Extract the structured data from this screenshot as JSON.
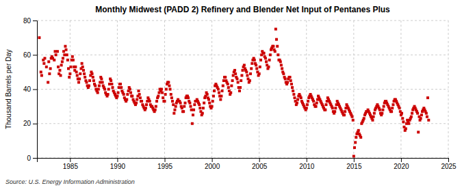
{
  "chart_data": {
    "type": "scatter",
    "title": "Monthly Midwest (PADD 2) Refinery and Blender Net Input of Pentanes Plus",
    "ylabel": "Thousand Barrels per Day",
    "annotations": [
      "Source: U.S. Energy Information Administration"
    ],
    "color": "#cc0000",
    "marker": "square",
    "grid": true,
    "xlim": [
      1981.5,
      2025
    ],
    "ylim": [
      0,
      80
    ],
    "xticks": [
      1985,
      1990,
      1995,
      2000,
      2005,
      2010,
      2015,
      2020,
      2025
    ],
    "yticks": [
      0,
      20,
      40,
      60,
      80
    ],
    "x": [
      1981.75,
      1981.92,
      1982.0,
      1982.17,
      1982.25,
      1982.33,
      1982.5,
      1982.67,
      1982.75,
      1982.83,
      1982.92,
      1983.0,
      1983.08,
      1983.17,
      1983.33,
      1983.42,
      1983.5,
      1983.67,
      1983.75,
      1983.83,
      1983.92,
      1984.0,
      1984.08,
      1984.17,
      1984.25,
      1984.33,
      1984.42,
      1984.5,
      1984.58,
      1984.67,
      1984.75,
      1984.83,
      1984.92,
      1985.0,
      1985.08,
      1985.17,
      1985.25,
      1985.33,
      1985.42,
      1985.5,
      1985.58,
      1985.67,
      1985.75,
      1985.83,
      1985.92,
      1986.0,
      1986.08,
      1986.17,
      1986.25,
      1986.33,
      1986.42,
      1986.5,
      1986.58,
      1986.67,
      1986.75,
      1986.83,
      1986.92,
      1987.0,
      1987.08,
      1987.17,
      1987.25,
      1987.33,
      1987.42,
      1987.5,
      1987.58,
      1987.67,
      1987.75,
      1987.83,
      1987.92,
      1988.0,
      1988.08,
      1988.17,
      1988.25,
      1988.33,
      1988.42,
      1988.5,
      1988.58,
      1988.67,
      1988.75,
      1988.83,
      1988.92,
      1989.0,
      1989.08,
      1989.17,
      1989.25,
      1989.33,
      1989.42,
      1989.5,
      1989.58,
      1989.67,
      1989.75,
      1989.83,
      1989.92,
      1990.0,
      1990.08,
      1990.17,
      1990.25,
      1990.33,
      1990.42,
      1990.5,
      1990.58,
      1990.67,
      1990.75,
      1990.83,
      1990.92,
      1991.0,
      1991.08,
      1991.17,
      1991.25,
      1991.33,
      1991.42,
      1991.5,
      1991.58,
      1991.67,
      1991.75,
      1991.83,
      1991.92,
      1992.0,
      1992.08,
      1992.17,
      1992.25,
      1992.33,
      1992.42,
      1992.5,
      1992.58,
      1992.67,
      1992.75,
      1992.83,
      1992.92,
      1993.0,
      1993.08,
      1993.17,
      1993.25,
      1993.33,
      1993.42,
      1993.5,
      1993.58,
      1993.67,
      1993.75,
      1993.83,
      1993.92,
      1994.0,
      1994.08,
      1994.17,
      1994.25,
      1994.33,
      1994.42,
      1994.5,
      1994.58,
      1994.67,
      1994.75,
      1994.83,
      1994.92,
      1995.0,
      1995.08,
      1995.17,
      1995.25,
      1995.33,
      1995.42,
      1995.5,
      1995.58,
      1995.67,
      1995.75,
      1995.83,
      1995.92,
      1996.0,
      1996.08,
      1996.17,
      1996.25,
      1996.33,
      1996.42,
      1996.5,
      1996.58,
      1996.67,
      1996.75,
      1996.83,
      1996.92,
      1997.0,
      1997.08,
      1997.17,
      1997.25,
      1997.33,
      1997.42,
      1997.5,
      1997.58,
      1997.67,
      1997.75,
      1997.83,
      1997.92,
      1998.0,
      1998.08,
      1998.17,
      1998.25,
      1998.33,
      1998.42,
      1998.5,
      1998.58,
      1998.67,
      1998.75,
      1998.83,
      1998.92,
      1999.0,
      1999.08,
      1999.17,
      1999.25,
      1999.33,
      1999.42,
      1999.5,
      1999.58,
      1999.67,
      1999.75,
      1999.83,
      1999.92,
      2000.0,
      2000.08,
      2000.17,
      2000.25,
      2000.33,
      2000.42,
      2000.5,
      2000.58,
      2000.67,
      2000.75,
      2000.83,
      2000.92,
      2001.0,
      2001.08,
      2001.17,
      2001.25,
      2001.33,
      2001.42,
      2001.5,
      2001.58,
      2001.67,
      2001.75,
      2001.83,
      2001.92,
      2002.0,
      2002.08,
      2002.17,
      2002.25,
      2002.33,
      2002.42,
      2002.5,
      2002.58,
      2002.67,
      2002.75,
      2002.83,
      2002.92,
      2003.0,
      2003.08,
      2003.17,
      2003.25,
      2003.33,
      2003.42,
      2003.5,
      2003.58,
      2003.67,
      2003.75,
      2003.83,
      2003.92,
      2004.0,
      2004.08,
      2004.17,
      2004.25,
      2004.33,
      2004.42,
      2004.5,
      2004.58,
      2004.67,
      2004.75,
      2004.83,
      2004.92,
      2005.0,
      2005.08,
      2005.17,
      2005.25,
      2005.33,
      2005.42,
      2005.5,
      2005.58,
      2005.67,
      2005.75,
      2005.83,
      2005.92,
      2006.0,
      2006.08,
      2006.17,
      2006.25,
      2006.33,
      2006.42,
      2006.5,
      2006.58,
      2006.67,
      2006.75,
      2006.83,
      2006.92,
      2007.0,
      2007.08,
      2007.17,
      2007.25,
      2007.33,
      2007.42,
      2007.5,
      2007.58,
      2007.67,
      2007.75,
      2007.83,
      2007.92,
      2008.0,
      2008.08,
      2008.17,
      2008.25,
      2008.33,
      2008.42,
      2008.5,
      2008.58,
      2008.67,
      2008.75,
      2008.83,
      2008.92,
      2009.0,
      2009.08,
      2009.17,
      2009.25,
      2009.33,
      2009.42,
      2009.5,
      2009.58,
      2009.67,
      2009.75,
      2009.83,
      2009.92,
      2010.0,
      2010.08,
      2010.17,
      2010.25,
      2010.33,
      2010.42,
      2010.5,
      2010.58,
      2010.67,
      2010.75,
      2010.83,
      2010.92,
      2011.0,
      2011.08,
      2011.17,
      2011.25,
      2011.33,
      2011.42,
      2011.5,
      2011.58,
      2011.67,
      2011.75,
      2011.83,
      2011.92,
      2012.0,
      2012.08,
      2012.17,
      2012.25,
      2012.33,
      2012.42,
      2012.5,
      2012.58,
      2012.67,
      2012.75,
      2012.83,
      2012.92,
      2013.0,
      2013.08,
      2013.17,
      2013.25,
      2013.33,
      2013.42,
      2013.5,
      2013.58,
      2013.67,
      2013.75,
      2013.83,
      2013.92,
      2014.0,
      2014.08,
      2014.17,
      2014.25,
      2014.33,
      2014.42,
      2014.5,
      2014.58,
      2014.67,
      2014.75,
      2014.83,
      2014.92,
      2015.0,
      2015.08,
      2015.17,
      2015.25,
      2015.33,
      2015.42,
      2015.5,
      2015.58,
      2015.67,
      2015.75,
      2015.83,
      2015.92,
      2016.0,
      2016.08,
      2016.17,
      2016.25,
      2016.33,
      2016.42,
      2016.5,
      2016.58,
      2016.67,
      2016.75,
      2016.83,
      2016.92,
      2017.0,
      2017.08,
      2017.17,
      2017.25,
      2017.33,
      2017.42,
      2017.5,
      2017.58,
      2017.67,
      2017.75,
      2017.83,
      2017.92,
      2018.0,
      2018.08,
      2018.17,
      2018.25,
      2018.33,
      2018.42,
      2018.5,
      2018.58,
      2018.67,
      2018.75,
      2018.83,
      2018.92,
      2019.0,
      2019.08,
      2019.17,
      2019.25,
      2019.33,
      2019.42,
      2019.5,
      2019.58,
      2019.67,
      2019.75,
      2019.83,
      2019.92,
      2020.0,
      2020.08,
      2020.17,
      2020.25,
      2020.33,
      2020.42,
      2020.5,
      2020.58,
      2020.67,
      2020.75,
      2020.83,
      2020.92,
      2021.0,
      2021.08,
      2021.17,
      2021.25,
      2021.33,
      2021.42,
      2021.5,
      2021.58,
      2021.67,
      2021.75,
      2021.83,
      2021.92,
      2022.0,
      2022.08,
      2022.17,
      2022.25,
      2022.33,
      2022.42,
      2022.5,
      2022.58,
      2022.67,
      2022.75,
      2022.83,
      2022.92
    ],
    "values": [
      70,
      50,
      48,
      57,
      55,
      58,
      53,
      44,
      56,
      49,
      52,
      58,
      59,
      58,
      57,
      62,
      60,
      62,
      53,
      49,
      51,
      48,
      54,
      56,
      58,
      62,
      60,
      65,
      63,
      60,
      57,
      52,
      47,
      49,
      53,
      57,
      59,
      57,
      53,
      51,
      53,
      50,
      48,
      46,
      44,
      46,
      49,
      52,
      55,
      53,
      51,
      49,
      47,
      45,
      44,
      42,
      41,
      42,
      45,
      48,
      50,
      49,
      47,
      45,
      43,
      42,
      40,
      39,
      38,
      40,
      42,
      44,
      47,
      46,
      44,
      42,
      41,
      40,
      38,
      37,
      36,
      37,
      40,
      43,
      46,
      45,
      43,
      41,
      39,
      38,
      37,
      36,
      35,
      36,
      38,
      41,
      43,
      43,
      41,
      39,
      38,
      37,
      35,
      34,
      33,
      34,
      37,
      39,
      41,
      40,
      38,
      36,
      36,
      34,
      33,
      32,
      31,
      32,
      34,
      36,
      39,
      37,
      35,
      33,
      33,
      31,
      30,
      29,
      28,
      29,
      31,
      33,
      35,
      34,
      33,
      31,
      30,
      30,
      29,
      28,
      27,
      28,
      30,
      33,
      35,
      36,
      38,
      40,
      39,
      40,
      38,
      35,
      33,
      33,
      37,
      40,
      43,
      44,
      44,
      42,
      40,
      37,
      35,
      33,
      31,
      26,
      28,
      30,
      32,
      33,
      34,
      33,
      33,
      32,
      30,
      29,
      27,
      27,
      30,
      32,
      35,
      36,
      36,
      35,
      33,
      32,
      30,
      28,
      20,
      25,
      28,
      31,
      33,
      33,
      34,
      33,
      32,
      31,
      29,
      27,
      25,
      26,
      29,
      32,
      35,
      36,
      38,
      37,
      35,
      34,
      32,
      30,
      29,
      30,
      33,
      36,
      39,
      42,
      43,
      42,
      41,
      40,
      38,
      36,
      34,
      36,
      39,
      42,
      45,
      47,
      47,
      45,
      44,
      43,
      41,
      39,
      37,
      38,
      42,
      45,
      48,
      50,
      51,
      49,
      47,
      46,
      44,
      41,
      39,
      41,
      45,
      48,
      51,
      53,
      54,
      52,
      51,
      50,
      48,
      46,
      44,
      45,
      49,
      52,
      55,
      57,
      58,
      57,
      55,
      54,
      52,
      50,
      48,
      49,
      53,
      57,
      60,
      62,
      61,
      61,
      59,
      58,
      56,
      54,
      52,
      53,
      57,
      60,
      63,
      64,
      65,
      65,
      63,
      62,
      75,
      69,
      65,
      60,
      57,
      57,
      56,
      54,
      52,
      50,
      49,
      47,
      46,
      44,
      43,
      44,
      46,
      47,
      47,
      45,
      43,
      41,
      39,
      37,
      35,
      33,
      31,
      32,
      34,
      36,
      37,
      36,
      35,
      33,
      32,
      31,
      30,
      29,
      28,
      29,
      31,
      33,
      35,
      36,
      37,
      36,
      35,
      34,
      33,
      31,
      30,
      30,
      32,
      34,
      36,
      35,
      34,
      33,
      32,
      31,
      30,
      29,
      28,
      28,
      31,
      33,
      35,
      34,
      33,
      32,
      31,
      30,
      29,
      27,
      26,
      27,
      29,
      31,
      33,
      32,
      31,
      30,
      29,
      28,
      27,
      26,
      25,
      25,
      27,
      29,
      31,
      30,
      29,
      28,
      27,
      26,
      25,
      24,
      22,
      1,
      6,
      9,
      12,
      14,
      15,
      16,
      14,
      13,
      12,
      20,
      21,
      22,
      23,
      25,
      26,
      27,
      27,
      28,
      27,
      26,
      25,
      24,
      23,
      22,
      24,
      26,
      28,
      29,
      30,
      31,
      30,
      29,
      28,
      26,
      25,
      26,
      28,
      30,
      32,
      33,
      33,
      32,
      31,
      30,
      29,
      28,
      27,
      27,
      29,
      31,
      33,
      34,
      34,
      33,
      32,
      31,
      30,
      29,
      27,
      25,
      26,
      23,
      21,
      18,
      16,
      17,
      20,
      22,
      21,
      20,
      22,
      23,
      24,
      26,
      28,
      29,
      30,
      29,
      28,
      27,
      26,
      15,
      24,
      22,
      23,
      25,
      27,
      28,
      29,
      28,
      27,
      26,
      24,
      35,
      22
    ]
  }
}
